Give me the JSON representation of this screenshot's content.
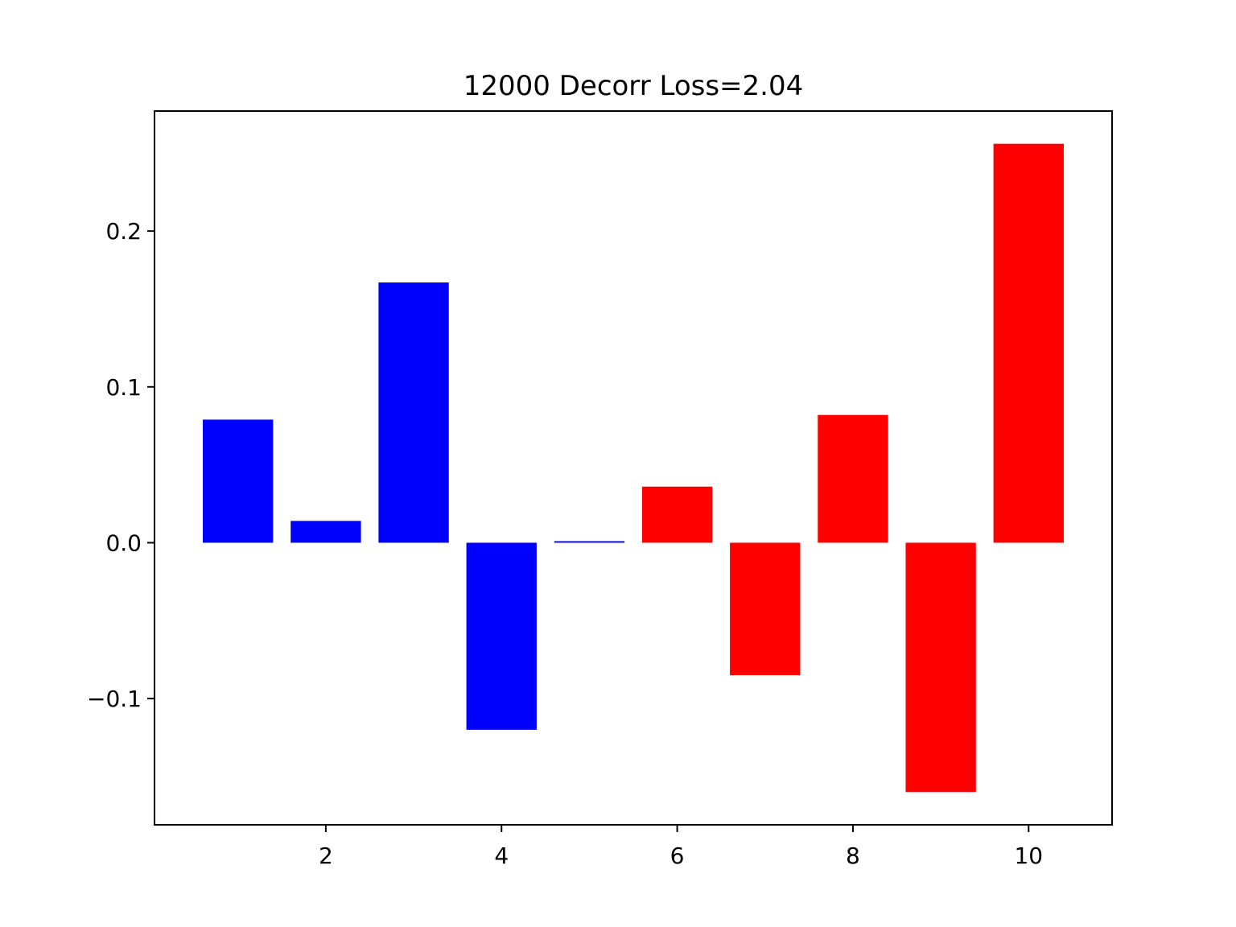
{
  "chart_data": {
    "type": "bar",
    "title": "12000 Decorr Loss=2.04",
    "xlabel": "",
    "ylabel": "",
    "x": [
      1,
      2,
      3,
      4,
      5,
      6,
      7,
      8,
      9,
      10
    ],
    "values": [
      0.079,
      0.014,
      0.167,
      -0.12,
      0.001,
      0.036,
      -0.085,
      0.082,
      -0.16,
      0.256
    ],
    "colors": [
      "#0000ff",
      "#0000ff",
      "#0000ff",
      "#0000ff",
      "#0000ff",
      "#ff0000",
      "#ff0000",
      "#ff0000",
      "#ff0000",
      "#ff0000"
    ],
    "xlim": [
      0.05,
      10.95
    ],
    "ylim": [
      -0.181,
      0.277
    ],
    "xticks": [
      2,
      4,
      6,
      8,
      10
    ],
    "xtick_labels": [
      "2",
      "4",
      "6",
      "8",
      "10"
    ],
    "yticks": [
      -0.1,
      0.0,
      0.1,
      0.2
    ],
    "ytick_labels": [
      "−0.1",
      "0.0",
      "0.1",
      "0.2"
    ],
    "bar_width": 0.8,
    "grid": false,
    "legend": null
  }
}
